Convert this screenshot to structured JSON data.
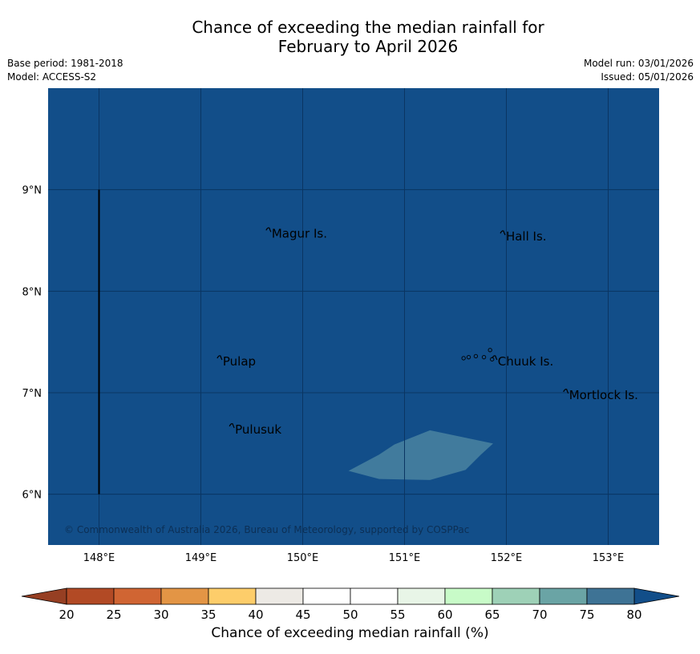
{
  "title": {
    "line1": "Chance of exceeding the median rainfall for",
    "line2": "February to April 2026"
  },
  "meta": {
    "base_period": "Base period: 1981-2018",
    "model": "Model: ACCESS-S2",
    "model_run": "Model run: 03/01/2026",
    "issued": "Issued: 05/01/2026"
  },
  "map": {
    "background_color": "#124e89",
    "grid_color": "#0a3562",
    "x_ticks": [
      {
        "value": 148,
        "label": "148°E"
      },
      {
        "value": 149,
        "label": "149°E"
      },
      {
        "value": 150,
        "label": "150°E"
      },
      {
        "value": 151,
        "label": "151°E"
      },
      {
        "value": 152,
        "label": "152°E"
      },
      {
        "value": 153,
        "label": "153°E"
      }
    ],
    "y_ticks": [
      {
        "value": 9,
        "label": "9°N"
      },
      {
        "value": 8,
        "label": "8°N"
      },
      {
        "value": 7,
        "label": "7°N"
      },
      {
        "value": 6,
        "label": "6°N"
      }
    ],
    "places": [
      {
        "name": "Magur Is.",
        "lon": 149.68,
        "lat": 8.56
      },
      {
        "name": "Hall Is.",
        "lon": 151.98,
        "lat": 8.53
      },
      {
        "name": "Pulap",
        "lon": 149.2,
        "lat": 7.3
      },
      {
        "name": "Chuuk Is.",
        "lon": 151.9,
        "lat": 7.3
      },
      {
        "name": "Mortlock Is.",
        "lon": 152.6,
        "lat": 6.97
      },
      {
        "name": "Pulusuk",
        "lon": 149.32,
        "lat": 6.63
      }
    ],
    "lighter_region_color": "#417b9d",
    "copyright": "© Commonwealth of Australia 2026, Bureau of Meteorology, supported by COSPPac"
  },
  "colorbar": {
    "label": "Chance of exceeding median rainfall (%)",
    "low_extend_color": "#963f23",
    "high_extend_color": "#124e89",
    "colors": [
      "#b24a25",
      "#d06533",
      "#e39545",
      "#fdcd6a",
      "#edeae5",
      "#ffffff",
      "#ffffff",
      "#e8f5e7",
      "#c8fbc8",
      "#9ed1b7",
      "#6aa4a5",
      "#3e7395"
    ],
    "ticks": [
      "20",
      "25",
      "30",
      "35",
      "40",
      "45",
      "50",
      "55",
      "60",
      "65",
      "70",
      "75",
      "80"
    ]
  }
}
